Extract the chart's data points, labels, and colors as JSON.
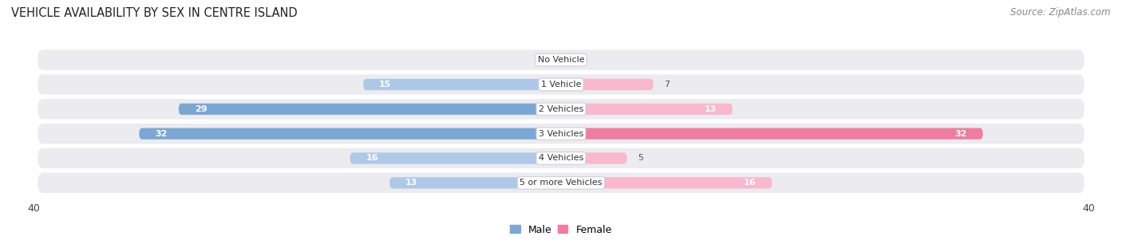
{
  "title": "VEHICLE AVAILABILITY BY SEX IN CENTRE ISLAND",
  "source": "Source: ZipAtlas.com",
  "categories": [
    "No Vehicle",
    "1 Vehicle",
    "2 Vehicles",
    "3 Vehicles",
    "4 Vehicles",
    "5 or more Vehicles"
  ],
  "male_values": [
    0,
    15,
    29,
    32,
    16,
    13
  ],
  "female_values": [
    0,
    7,
    13,
    32,
    5,
    16
  ],
  "male_color": "#7ba7d4",
  "female_color": "#f07ca0",
  "male_color_light": "#aec8e8",
  "female_color_light": "#f9b8cc",
  "row_bg_color": "#ebebf0",
  "x_max": 40,
  "label_color_inside": "#ffffff",
  "label_color_outside": "#555555",
  "title_fontsize": 10.5,
  "source_fontsize": 8.5,
  "axis_tick_fontsize": 9,
  "bar_label_fontsize": 8,
  "category_fontsize": 8
}
